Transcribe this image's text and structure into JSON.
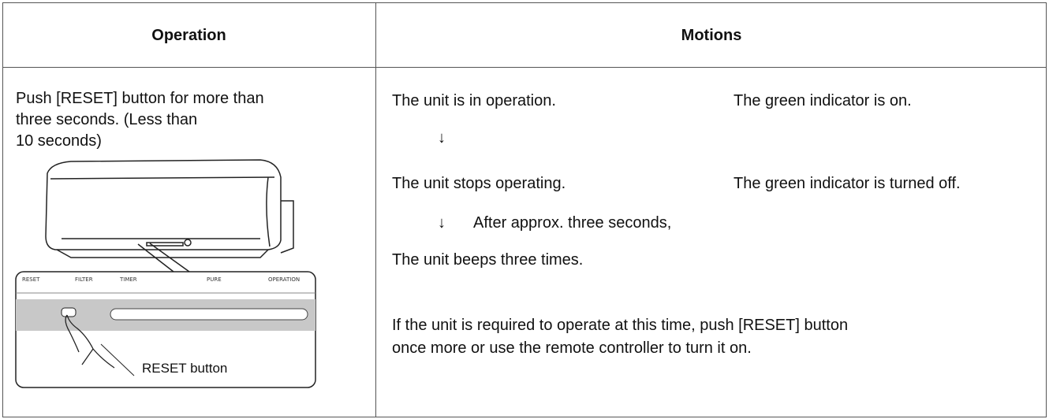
{
  "table": {
    "headers": [
      "Operation",
      "Motions"
    ],
    "operation": {
      "lines": [
        "Push [RESET] button for more than",
        "three seconds. (Less than",
        "10 seconds)"
      ],
      "illustration": {
        "panel_labels": [
          "RESET",
          "FILTER",
          "TIMER",
          "PURE",
          "OPERATION"
        ],
        "callout": "RESET button"
      }
    },
    "motions": {
      "step1": {
        "state": "The unit is in operation.",
        "indicator": "The green indicator is on."
      },
      "arrow1": "↓",
      "step2": {
        "state": "The unit stops operating.",
        "indicator": "The green indicator is turned off."
      },
      "arrow2": {
        "symbol": "↓",
        "note": "After approx. three seconds,"
      },
      "step3": "The unit beeps three times.",
      "note_lines": [
        "If the unit is required to operate at this time, push [RESET] button",
        "once more or use the remote controller to turn it on."
      ]
    }
  }
}
